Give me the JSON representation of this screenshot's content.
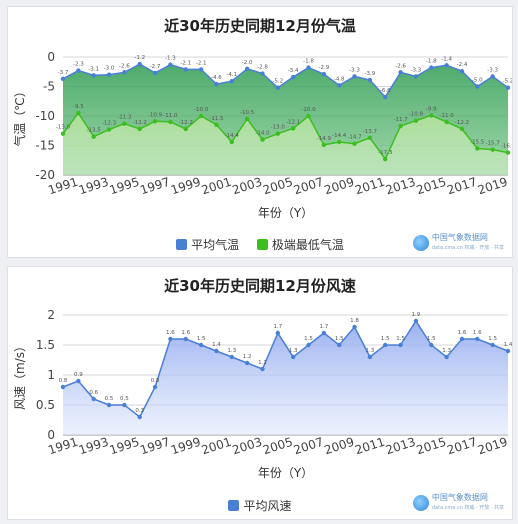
{
  "chart_data": [
    {
      "type": "line",
      "title": "近30年历史同期12月份气温",
      "xlabel": "年份（Y）",
      "ylabel": "气温（℃）",
      "ylim": [
        -20,
        0
      ],
      "yticks": [
        0,
        -5,
        -10,
        -15,
        -20
      ],
      "xticks": [
        "1991",
        "1993",
        "1995",
        "1997",
        "1999",
        "2001",
        "2003",
        "2005",
        "2007",
        "2009",
        "2011",
        "2013",
        "2015",
        "2017",
        "2019"
      ],
      "x": [
        1991,
        1992,
        1993,
        1994,
        1995,
        1996,
        1997,
        1998,
        1999,
        2000,
        2001,
        2002,
        2003,
        2004,
        2005,
        2006,
        2007,
        2008,
        2009,
        2010,
        2011,
        2012,
        2013,
        2014,
        2015,
        2016,
        2017,
        2018,
        2019,
        2020
      ],
      "series": [
        {
          "name": "平均气温",
          "color": "#4a7fd6",
          "values": [
            -3.7,
            -2.3,
            -3.1,
            -3.0,
            -2.6,
            -1.2,
            -2.7,
            -1.3,
            -2.1,
            -2.1,
            -4.6,
            -4.1,
            -2.0,
            -2.8,
            -5.2,
            -3.4,
            -1.8,
            -2.9,
            -4.8,
            -3.3,
            -3.9,
            -6.8,
            -2.6,
            -3.3,
            -1.8,
            -1.4,
            -2.4,
            -5.0,
            -3.3,
            -5.2
          ],
          "labels": [
            "-3.7",
            "-2.3",
            "-3.1",
            "-3.0",
            "-2.6",
            "-1.2",
            "-2.7",
            "-1.3",
            "-2.1",
            "-2.1",
            "-4.6",
            "-4.1",
            "-2.0",
            "-2.8",
            "-5.2",
            "-3.4",
            "-1.8",
            "-2.9",
            "-4.8",
            "-3.3",
            "-3.9",
            "-6.8",
            "-2.6",
            "-3.3",
            "-1.8",
            "-1.4",
            "-2.4",
            "-5.0",
            "-3.3",
            "-5.2"
          ]
        },
        {
          "name": "极端最低气温",
          "color": "#3bbf1e",
          "values": [
            -13.0,
            -9.5,
            -13.5,
            -12.3,
            -11.3,
            -12.2,
            -10.9,
            -11.0,
            -12.2,
            -10.0,
            -11.5,
            -14.4,
            -10.5,
            -14.0,
            -13.0,
            -12.1,
            -10.0,
            -14.9,
            -14.4,
            -14.7,
            -13.7,
            -17.3,
            -11.7,
            -10.8,
            -9.9,
            -11.0,
            -12.2,
            -15.5,
            -15.7,
            -16.2
          ],
          "labels": [
            "-13.0",
            "-9.5",
            "-13.5",
            "-12.3",
            "-11.3",
            "-12.2",
            "-10.9",
            "-11.0",
            "-12.2",
            "-10.0",
            "-11.5",
            "-14.4",
            "-10.5",
            "-14.0",
            "-13.0",
            "-12.1",
            "-10.0",
            "-14.9",
            "-14.4",
            "-14.7",
            "-13.7",
            "-17.3",
            "-11.7",
            "-10.8",
            "-9.9",
            "-11.0",
            "-12.2",
            "-15.5",
            "-15.7",
            "-16.2"
          ]
        }
      ]
    },
    {
      "type": "area",
      "title": "近30年历史同期12月份风速",
      "xlabel": "年份（Y）",
      "ylabel": "风速（m/s）",
      "ylim": [
        0,
        2
      ],
      "yticks": [
        2,
        1.5,
        1,
        0.5,
        0
      ],
      "xticks": [
        "1991",
        "1993",
        "1995",
        "1997",
        "1999",
        "2001",
        "2003",
        "2005",
        "2007",
        "2009",
        "2011",
        "2013",
        "2015",
        "2017",
        "2019"
      ],
      "x": [
        1991,
        1992,
        1993,
        1994,
        1995,
        1996,
        1997,
        1998,
        1999,
        2000,
        2001,
        2002,
        2003,
        2004,
        2005,
        2006,
        2007,
        2008,
        2009,
        2010,
        2011,
        2012,
        2013,
        2014,
        2015,
        2016,
        2017,
        2018,
        2019,
        2020
      ],
      "series": [
        {
          "name": "平均风速",
          "color": "#4a7fd6",
          "values": [
            0.8,
            0.9,
            0.6,
            0.5,
            0.5,
            0.3,
            0.8,
            1.6,
            1.6,
            1.5,
            1.4,
            1.3,
            1.2,
            1.1,
            1.7,
            1.3,
            1.5,
            1.7,
            1.5,
            1.8,
            1.3,
            1.5,
            1.5,
            1.9,
            1.5,
            1.3,
            1.6,
            1.6,
            1.5,
            1.4
          ],
          "labels": [
            "0.8",
            "0.9",
            "0.6",
            "0.5",
            "0.5",
            "0.3",
            "0.8",
            "1.6",
            "1.6",
            "1.5",
            "1.4",
            "1.3",
            "1.2",
            "1.1",
            "1.7",
            "1.3",
            "1.5",
            "1.7",
            "1.5",
            "1.8",
            "1.3",
            "1.5",
            "1.5",
            "1.9",
            "1.5",
            "1.3",
            "1.6",
            "1.6",
            "1.5",
            "1.4"
          ]
        }
      ]
    }
  ],
  "legends": {
    "temp": [
      {
        "label": "平均气温",
        "color": "#4a7fd6"
      },
      {
        "label": "极端最低气温",
        "color": "#3bbf1e"
      }
    ],
    "wind": [
      {
        "label": "平均风速",
        "color": "#4a7fd6"
      }
    ]
  },
  "brand": {
    "name": "中国气象数据网",
    "sub": "data.cma.cn 权威 · 开放 · 共享"
  }
}
